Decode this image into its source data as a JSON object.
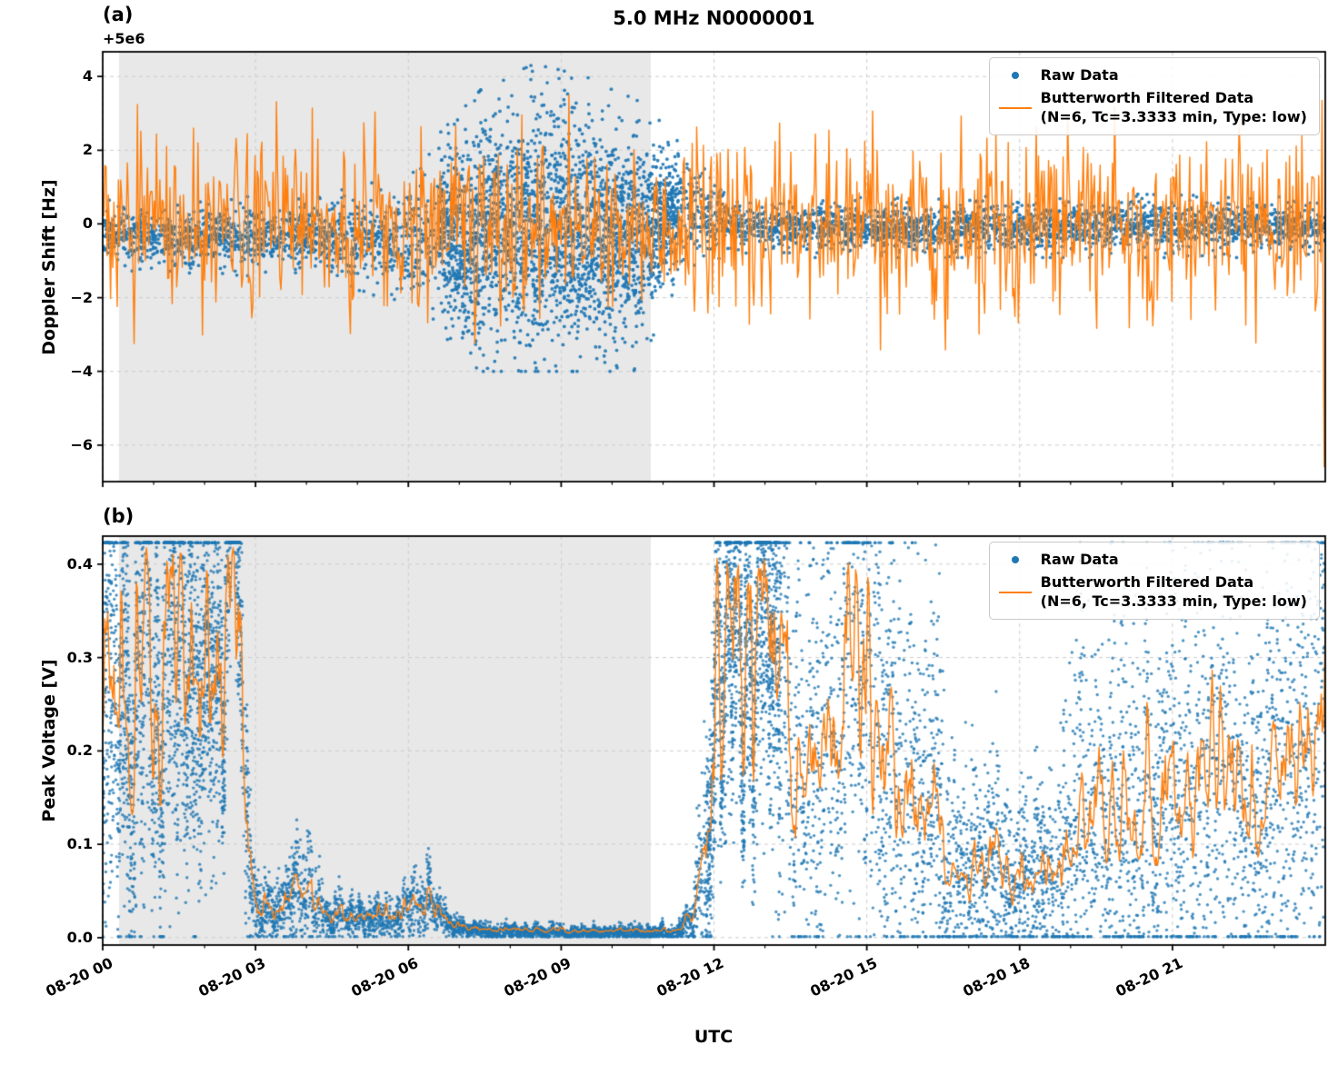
{
  "figure": {
    "title": "5.0 MHz N0000001",
    "xlabel": "UTC",
    "colors": {
      "raw": "#1f77b4",
      "filtered": "#ff7f0e",
      "shade": "#e8e8e8",
      "grid": "#cccccc",
      "spine": "#000000"
    },
    "legend": {
      "raw_label": "Raw Data",
      "filtered_label": "Butterworth Filtered Data",
      "filtered_sublabel": "(N=6, Tc=3.3333 min, Type: low)"
    }
  },
  "chart_data": [
    {
      "type": "scatter",
      "panel_label": "(a)",
      "ylabel": "Doppler Shift [Hz]",
      "offset_text": "+5e6",
      "ylim": [
        -6.99,
        4.67
      ],
      "yticks": [
        4,
        2,
        0,
        -2,
        -4,
        -6
      ],
      "ytick_labels": [
        "4",
        "2",
        "0",
        "−2",
        "−4",
        "−6"
      ],
      "x_hours_range": [
        0,
        24
      ],
      "xticks_hours": [
        0,
        3,
        6,
        9,
        12,
        15,
        18,
        21
      ],
      "shaded_hours": [
        0.32,
        10.76
      ],
      "series": [
        {
          "name": "Raw Data",
          "type": "scatter",
          "marker_px": 1.9,
          "alpha": 0.9,
          "points": 5200,
          "clip": [
            -4.0,
            4.35
          ],
          "modulated": false,
          "envelope": [
            [
              0,
              -0.3,
              0.35
            ],
            [
              2,
              -0.32,
              0.38
            ],
            [
              4,
              -0.35,
              0.42
            ],
            [
              5.5,
              -0.45,
              0.6
            ],
            [
              6.5,
              -0.4,
              1.0
            ],
            [
              7.5,
              -0.3,
              1.5
            ],
            [
              8.5,
              -0.1,
              1.65
            ],
            [
              9.5,
              -0.2,
              1.55
            ],
            [
              10.5,
              -0.3,
              1.35
            ],
            [
              11.2,
              0.3,
              0.8
            ],
            [
              11.9,
              0.25,
              0.45
            ],
            [
              12.5,
              -0.05,
              0.32
            ],
            [
              16,
              -0.1,
              0.3
            ],
            [
              20,
              -0.05,
              0.32
            ],
            [
              24,
              -0.1,
              0.3
            ]
          ],
          "extra": [
            {
              "range": [
                6.6,
                11.3
              ],
              "count": 1700
            }
          ]
        },
        {
          "name": "Butterworth Filtered Data",
          "type": "line",
          "follow_envelope": false,
          "noise_sigma": 1.22,
          "step_hours": 0.022,
          "clip": [
            -3.45,
            3.5
          ],
          "smooth": 0,
          "end_values": [
            3.35,
            -2.0,
            -6.6
          ]
        }
      ]
    },
    {
      "type": "scatter",
      "panel_label": "(b)",
      "ylabel": "Peak Voltage [V]",
      "ylim": [
        -0.008,
        0.43
      ],
      "yticks": [
        0.0,
        0.1,
        0.2,
        0.3,
        0.4
      ],
      "ytick_labels": [
        "0.0",
        "0.1",
        "0.2",
        "0.3",
        "0.4"
      ],
      "x_hours_range": [
        0,
        24
      ],
      "xticks_hours": [
        0,
        3,
        6,
        9,
        12,
        15,
        18,
        21
      ],
      "xtick_labels": [
        "08-20 00",
        "08-20 03",
        "08-20 06",
        "08-20 09",
        "08-20 12",
        "08-20 15",
        "08-20 18",
        "08-20 21"
      ],
      "shaded_hours": [
        0.32,
        10.76
      ],
      "series": [
        {
          "name": "Raw Data",
          "type": "scatter",
          "marker_px": 1.7,
          "alpha": 0.78,
          "points": 9000,
          "clip": [
            0.001,
            0.423
          ],
          "modulated": true,
          "envelope": [
            [
              0.0,
              0.2,
              0.1
            ],
            [
              0.5,
              0.24,
              0.1
            ],
            [
              1.0,
              0.26,
              0.1
            ],
            [
              1.5,
              0.24,
              0.1
            ],
            [
              2.0,
              0.27,
              0.09
            ],
            [
              2.4,
              0.34,
              0.06
            ],
            [
              2.65,
              0.36,
              0.05
            ],
            [
              2.8,
              0.1,
              0.05
            ],
            [
              2.95,
              0.03,
              0.015
            ],
            [
              3.3,
              0.022,
              0.012
            ],
            [
              3.7,
              0.03,
              0.02
            ],
            [
              4.1,
              0.05,
              0.025
            ],
            [
              4.4,
              0.025,
              0.012
            ],
            [
              5.0,
              0.018,
              0.008
            ],
            [
              5.8,
              0.02,
              0.01
            ],
            [
              6.3,
              0.045,
              0.02
            ],
            [
              6.6,
              0.02,
              0.008
            ],
            [
              7.0,
              0.007,
              0.004
            ],
            [
              8.0,
              0.005,
              0.003
            ],
            [
              11.2,
              0.005,
              0.003
            ],
            [
              11.6,
              0.02,
              0.01
            ],
            [
              11.85,
              0.12,
              0.06
            ],
            [
              12.0,
              0.3,
              0.08
            ],
            [
              12.5,
              0.33,
              0.07
            ],
            [
              13.0,
              0.3,
              0.09
            ],
            [
              13.5,
              0.17,
              0.1
            ],
            [
              14.0,
              0.12,
              0.08
            ],
            [
              14.5,
              0.22,
              0.11
            ],
            [
              15.0,
              0.25,
              0.11
            ],
            [
              15.5,
              0.15,
              0.1
            ],
            [
              16.0,
              0.12,
              0.09
            ],
            [
              16.5,
              0.1,
              0.07
            ],
            [
              17.0,
              0.07,
              0.05
            ],
            [
              17.5,
              0.06,
              0.04
            ],
            [
              18.0,
              0.06,
              0.04
            ],
            [
              18.5,
              0.07,
              0.05
            ],
            [
              19.0,
              0.1,
              0.08
            ],
            [
              19.5,
              0.12,
              0.09
            ],
            [
              20.0,
              0.13,
              0.1
            ],
            [
              20.5,
              0.12,
              0.09
            ],
            [
              21.0,
              0.13,
              0.1
            ],
            [
              21.5,
              0.16,
              0.11
            ],
            [
              22.0,
              0.15,
              0.1
            ],
            [
              22.5,
              0.12,
              0.09
            ],
            [
              23.0,
              0.16,
              0.11
            ],
            [
              23.5,
              0.18,
              0.11
            ],
            [
              24.0,
              0.2,
              0.11
            ]
          ],
          "extra": [
            {
              "range": [
                0.0,
                2.75
              ],
              "count": 1500
            },
            {
              "range": [
                11.85,
                13.3
              ],
              "count": 1200
            }
          ]
        },
        {
          "name": "Butterworth Filtered Data",
          "type": "line",
          "follow_envelope": true,
          "rel_noise": 0.18,
          "step_hours": 0.02,
          "clip": [
            0.002,
            0.42
          ],
          "smooth": 1,
          "end_values": []
        }
      ]
    }
  ]
}
